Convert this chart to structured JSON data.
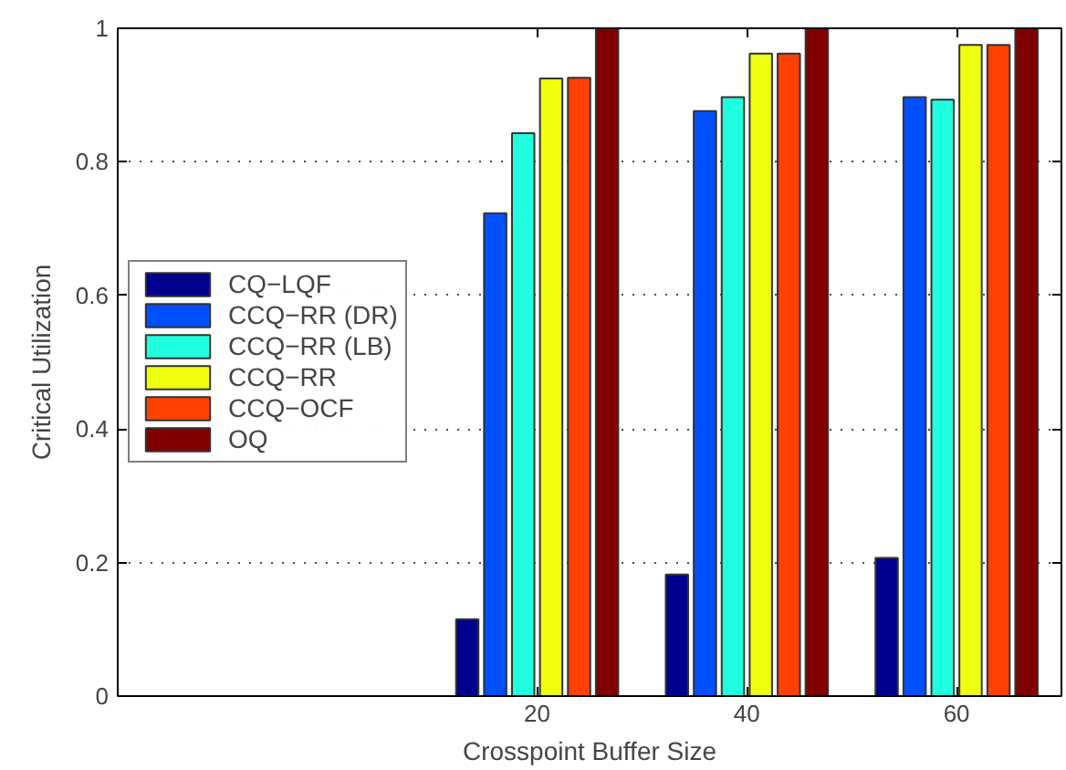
{
  "chart_data": {
    "type": "bar",
    "xlabel": "Crosspoint Buffer Size",
    "ylabel": "Critical Utilization",
    "x": [
      20,
      40,
      60
    ],
    "series": [
      {
        "name": "CQ−LQF",
        "color": "#00008f",
        "values": [
          0.115,
          0.182,
          0.207
        ]
      },
      {
        "name": "CCQ−RR (DR)",
        "color": "#0050ff",
        "values": [
          0.723,
          0.876,
          0.897
        ]
      },
      {
        "name": "CCQ−RR (LB)",
        "color": "#20ffdf",
        "values": [
          0.843,
          0.897,
          0.893
        ]
      },
      {
        "name": "CCQ−RR",
        "color": "#efff10",
        "values": [
          0.925,
          0.962,
          0.975
        ]
      },
      {
        "name": "CCQ−OCF",
        "color": "#ff4000",
        "values": [
          0.926,
          0.962,
          0.975
        ]
      },
      {
        "name": "OQ",
        "color": "#800000",
        "values": [
          1.0,
          1.0,
          1.0
        ]
      }
    ],
    "xlim": [
      -20,
      70
    ],
    "xticks": [
      20,
      40,
      60
    ],
    "ylim": [
      0,
      1
    ],
    "yticks": [
      0,
      0.2,
      0.4,
      0.6,
      0.8,
      1
    ],
    "grid": "y",
    "legend": "left"
  }
}
